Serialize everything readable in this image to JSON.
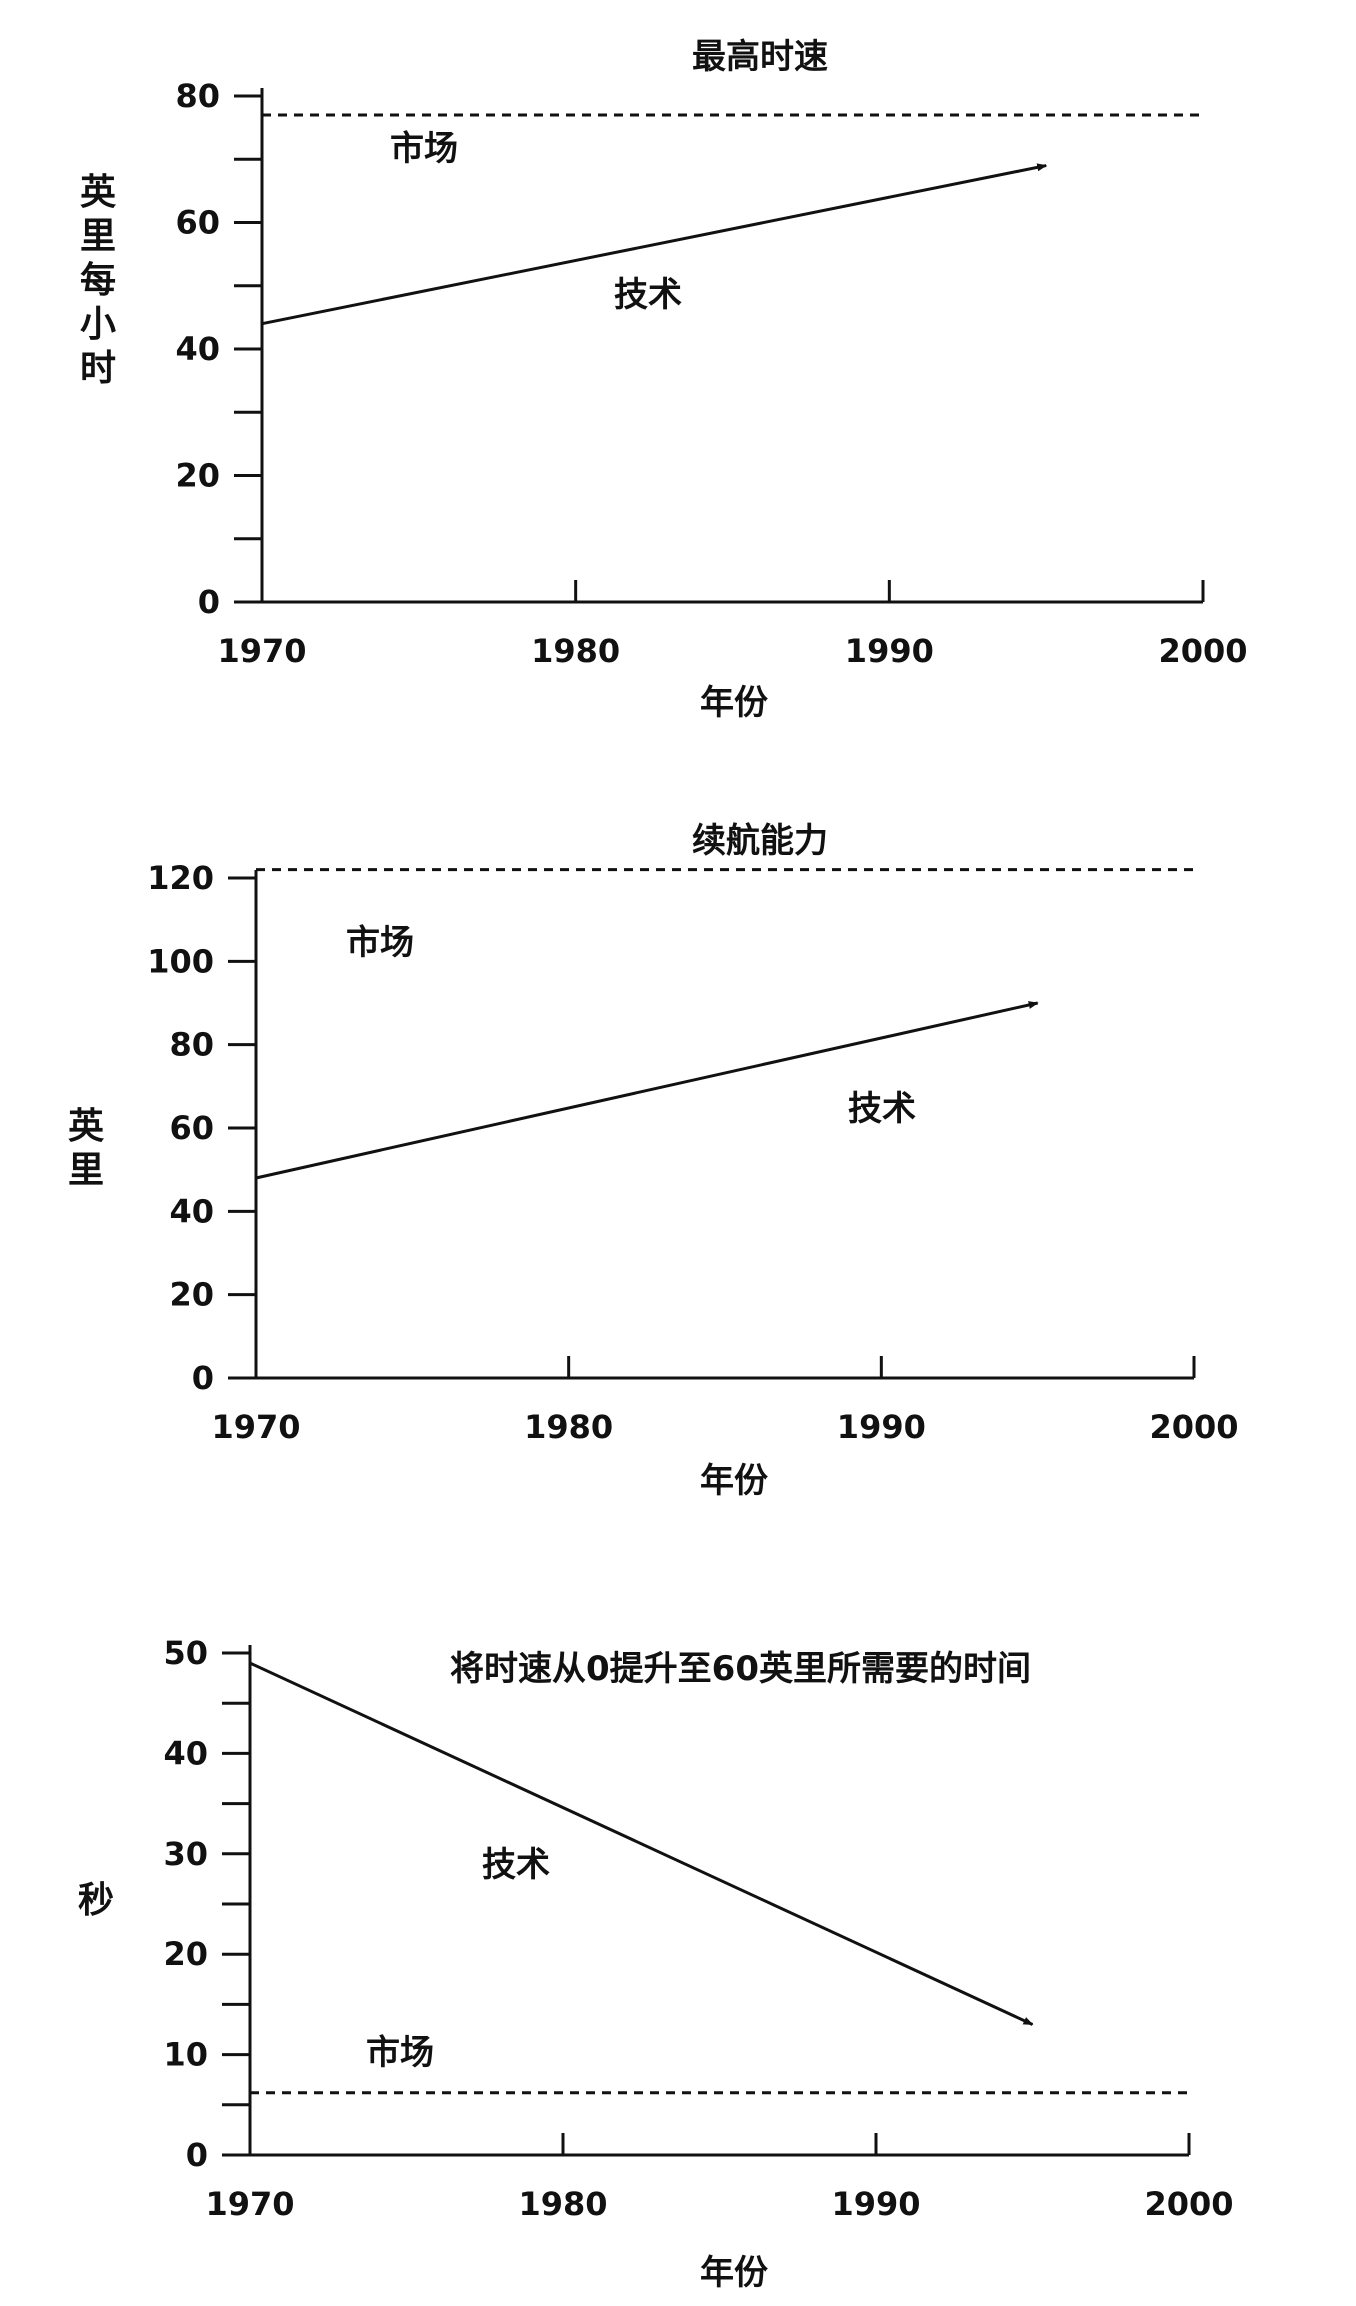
{
  "chart_data": [
    {
      "type": "line",
      "title": "最高时速",
      "xlabel": "年份",
      "ylabel": "英里每小时",
      "xlim": [
        1970,
        2000
      ],
      "ylim": [
        0,
        80
      ],
      "x_ticks": [
        "1970",
        "1980",
        "1990",
        "2000"
      ],
      "y_ticks": [
        "0",
        "20",
        "40",
        "60",
        "80"
      ],
      "grid": false,
      "series": [
        {
          "name": "技术",
          "style": "solid-arrow",
          "x": [
            1970,
            1995
          ],
          "y": [
            44,
            69
          ]
        },
        {
          "name": "市场",
          "style": "dashed",
          "x": [
            1970,
            2000
          ],
          "y": [
            77,
            77
          ]
        }
      ]
    },
    {
      "type": "line",
      "title": "续航能力",
      "xlabel": "年份",
      "ylabel": "英里",
      "xlim": [
        1970,
        2000
      ],
      "ylim": [
        0,
        120
      ],
      "x_ticks": [
        "1970",
        "1980",
        "1990",
        "2000"
      ],
      "y_ticks": [
        "0",
        "20",
        "40",
        "60",
        "80",
        "100",
        "120"
      ],
      "grid": false,
      "series": [
        {
          "name": "技术",
          "style": "solid-arrow",
          "x": [
            1970,
            1995
          ],
          "y": [
            48,
            90
          ]
        },
        {
          "name": "市场",
          "style": "dashed",
          "x": [
            1970,
            2000
          ],
          "y": [
            122,
            122
          ]
        }
      ]
    },
    {
      "type": "line",
      "title": "将时速从0提升至60英里所需要的时间",
      "xlabel": "年份",
      "ylabel": "秒",
      "xlim": [
        1970,
        2000
      ],
      "ylim": [
        0,
        50
      ],
      "x_ticks": [
        "1970",
        "1980",
        "1990",
        "2000"
      ],
      "y_ticks": [
        "0",
        "10",
        "20",
        "30",
        "40",
        "50"
      ],
      "grid": false,
      "series": [
        {
          "name": "技术",
          "style": "solid-arrow",
          "x": [
            1970,
            1995
          ],
          "y": [
            49,
            13
          ]
        },
        {
          "name": "市场",
          "style": "dashed",
          "x": [
            1970,
            2000
          ],
          "y": [
            6.2,
            6.2
          ]
        }
      ]
    }
  ]
}
